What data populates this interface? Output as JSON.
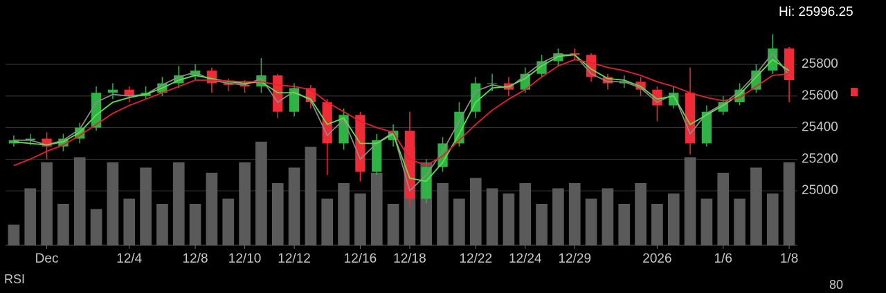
{
  "chart_data": {
    "type": "candlestick",
    "hi_label": "Hi: 25996.25",
    "categories": [
      null,
      null,
      "Dec",
      null,
      null,
      null,
      null,
      "12/4",
      null,
      null,
      null,
      "12/8",
      null,
      null,
      "12/10",
      null,
      null,
      "12/12",
      null,
      null,
      null,
      "12/16",
      null,
      null,
      "12/18",
      null,
      null,
      null,
      "12/22",
      null,
      null,
      "12/24",
      null,
      null,
      "12/29",
      null,
      null,
      null,
      null,
      "2026",
      null,
      null,
      null,
      "1/6",
      null,
      null,
      null,
      "1/8"
    ],
    "open": [
      25300,
      25320,
      25330,
      25280,
      25330,
      25400,
      25620,
      25640,
      25600,
      25620,
      25680,
      25730,
      25760,
      25680,
      25670,
      25660,
      25730,
      25500,
      25650,
      25560,
      25300,
      25480,
      25120,
      25320,
      25380,
      24950,
      25150,
      25300,
      25500,
      25680,
      25680,
      25640,
      25740,
      25820,
      25870,
      25860,
      25720,
      25680,
      25690,
      25640,
      25540,
      25620,
      25300,
      25500,
      25560,
      25640,
      25760,
      25900
    ],
    "high": [
      25350,
      25360,
      25370,
      25360,
      25430,
      25660,
      25680,
      25660,
      25660,
      25720,
      25790,
      25800,
      25780,
      25710,
      25700,
      25840,
      25740,
      25680,
      25670,
      25580,
      25520,
      25500,
      25360,
      25420,
      25500,
      25200,
      25340,
      25560,
      25720,
      25740,
      25720,
      25780,
      25860,
      25900,
      25900,
      25870,
      25740,
      25730,
      25720,
      25660,
      25660,
      25780,
      25540,
      25600,
      25680,
      25800,
      25990,
      25910
    ],
    "low": [
      25280,
      25290,
      25200,
      25250,
      25300,
      25380,
      25580,
      25560,
      25580,
      25600,
      25650,
      25700,
      25620,
      25630,
      25620,
      25620,
      25460,
      25470,
      25520,
      25100,
      25260,
      25060,
      25100,
      25280,
      24900,
      24920,
      25120,
      25280,
      25460,
      25630,
      25600,
      25620,
      25720,
      25790,
      25830,
      25690,
      25640,
      25650,
      25600,
      25440,
      25520,
      25230,
      25280,
      25480,
      25540,
      25620,
      25740,
      25560
    ],
    "close": [
      25320,
      25330,
      25280,
      25330,
      25400,
      25620,
      25640,
      25600,
      25620,
      25680,
      25730,
      25760,
      25680,
      25670,
      25660,
      25730,
      25500,
      25650,
      25560,
      25300,
      25480,
      25120,
      25320,
      25380,
      24950,
      25150,
      25300,
      25500,
      25680,
      25680,
      25640,
      25740,
      25820,
      25870,
      25860,
      25720,
      25680,
      25690,
      25640,
      25540,
      25620,
      25300,
      25500,
      25560,
      25640,
      25760,
      25900,
      25700
    ],
    "up_color": "#2fb344",
    "down_color": "#ee2b36",
    "moving_averages": [
      {
        "color": "#8a8a8a",
        "values": [
          25320,
          25320,
          25290,
          25320,
          25390,
          25560,
          25610,
          25600,
          25610,
          25670,
          25720,
          25750,
          25700,
          25680,
          25670,
          25710,
          25560,
          25630,
          25570,
          25350,
          25450,
          25200,
          25300,
          25370,
          25000,
          25100,
          25250,
          25440,
          25630,
          25670,
          25650,
          25730,
          25810,
          25860,
          25860,
          25740,
          25690,
          25690,
          25650,
          25560,
          25610,
          25360,
          25490,
          25550,
          25630,
          25740,
          25870,
          25730
        ]
      },
      {
        "color": "#5ee04a",
        "values": [
          25310,
          25300,
          25290,
          25310,
          25370,
          25480,
          25560,
          25590,
          25610,
          25650,
          25700,
          25730,
          25710,
          25690,
          25680,
          25690,
          25620,
          25620,
          25580,
          25420,
          25460,
          25300,
          25300,
          25360,
          25080,
          25060,
          25180,
          25360,
          25560,
          25650,
          25660,
          25710,
          25790,
          25850,
          25860,
          25770,
          25710,
          25700,
          25660,
          25580,
          25600,
          25420,
          25480,
          25540,
          25610,
          25720,
          25830,
          25760
        ]
      },
      {
        "color": "#e8202e",
        "values": [
          25160,
          25200,
          25250,
          25290,
          25350,
          25420,
          25490,
          25540,
          25580,
          25620,
          25660,
          25700,
          25700,
          25695,
          25690,
          25690,
          25670,
          25660,
          25640,
          25560,
          25500,
          25440,
          25400,
          25370,
          25200,
          25160,
          25220,
          25320,
          25420,
          25510,
          25580,
          25640,
          25720,
          25790,
          25830,
          25810,
          25780,
          25760,
          25730,
          25690,
          25660,
          25620,
          25590,
          25570,
          25590,
          25660,
          25730,
          25740
        ]
      }
    ],
    "volume": [
      20,
      55,
      80,
      40,
      85,
      35,
      80,
      45,
      75,
      40,
      80,
      40,
      70,
      45,
      80,
      100,
      60,
      75,
      95,
      45,
      60,
      50,
      70,
      40,
      95,
      80,
      60,
      45,
      65,
      55,
      50,
      60,
      40,
      55,
      60,
      45,
      55,
      40,
      60,
      40,
      50,
      85,
      45,
      70,
      45,
      75,
      50,
      80
    ],
    "volume_color": "#5a5a5a",
    "vlim": [
      0,
      100
    ],
    "ylim": [
      24655,
      26207
    ],
    "yticks": [
      25800,
      25600,
      25400,
      25200,
      25000
    ],
    "grid": true,
    "last_price": 25625,
    "last_price_color": "#ee2b36",
    "rsi": {
      "title": "RSI",
      "yticks": [
        80
      ]
    }
  }
}
